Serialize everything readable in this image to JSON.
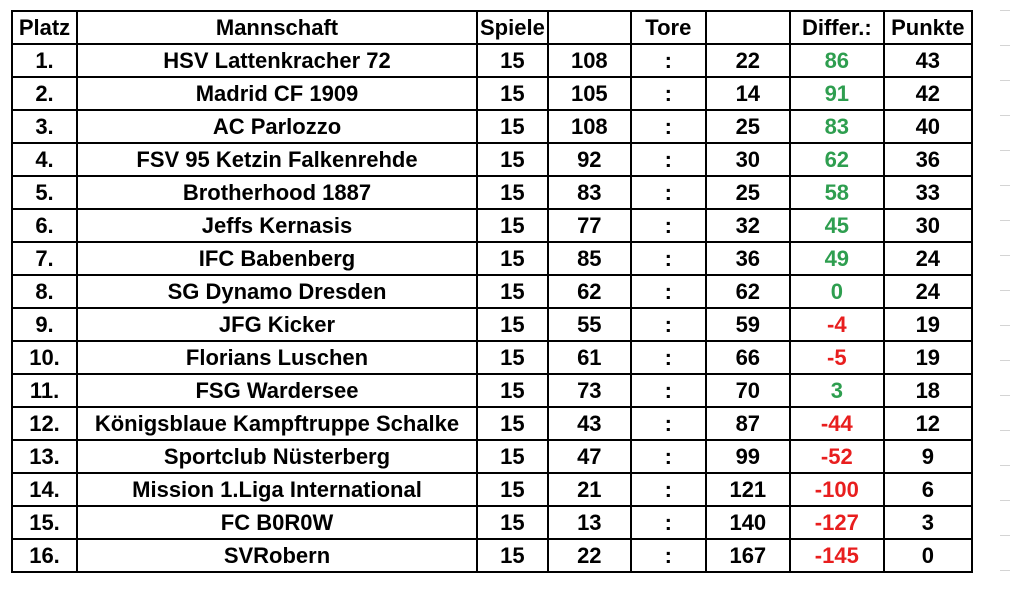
{
  "headers": {
    "platz": "Platz",
    "team": "Mannschaft",
    "spiele": "Spiele",
    "tore": "Tore",
    "diff": "Differ.:",
    "punkte": "Punkte"
  },
  "separator": ":",
  "colors": {
    "positive": "#2e9e4f",
    "negative": "#e81e1e"
  },
  "rows": [
    {
      "platz": "1.",
      "team": "HSV Lattenkracher 72",
      "spiele": "15",
      "tore_for": "108",
      "tore_against": "22",
      "diff": "86",
      "punkte": "43"
    },
    {
      "platz": "2.",
      "team": "Madrid CF 1909",
      "spiele": "15",
      "tore_for": "105",
      "tore_against": "14",
      "diff": "91",
      "punkte": "42"
    },
    {
      "platz": "3.",
      "team": "AC Parlozzo",
      "spiele": "15",
      "tore_for": "108",
      "tore_against": "25",
      "diff": "83",
      "punkte": "40"
    },
    {
      "platz": "4.",
      "team": "FSV 95 Ketzin Falkenrehde",
      "spiele": "15",
      "tore_for": "92",
      "tore_against": "30",
      "diff": "62",
      "punkte": "36"
    },
    {
      "platz": "5.",
      "team": "Brotherhood 1887",
      "spiele": "15",
      "tore_for": "83",
      "tore_against": "25",
      "diff": "58",
      "punkte": "33"
    },
    {
      "platz": "6.",
      "team": "Jeffs Kernasis",
      "spiele": "15",
      "tore_for": "77",
      "tore_against": "32",
      "diff": "45",
      "punkte": "30"
    },
    {
      "platz": "7.",
      "team": "IFC Babenberg",
      "spiele": "15",
      "tore_for": "85",
      "tore_against": "36",
      "diff": "49",
      "punkte": "24"
    },
    {
      "platz": "8.",
      "team": "SG Dynamo Dresden",
      "spiele": "15",
      "tore_for": "62",
      "tore_against": "62",
      "diff": "0",
      "punkte": "24"
    },
    {
      "platz": "9.",
      "team": "JFG Kicker",
      "spiele": "15",
      "tore_for": "55",
      "tore_against": "59",
      "diff": "-4",
      "punkte": "19"
    },
    {
      "platz": "10.",
      "team": "Florians Luschen",
      "spiele": "15",
      "tore_for": "61",
      "tore_against": "66",
      "diff": "-5",
      "punkte": "19"
    },
    {
      "platz": "11.",
      "team": "FSG Wardersee",
      "spiele": "15",
      "tore_for": "73",
      "tore_against": "70",
      "diff": "3",
      "punkte": "18"
    },
    {
      "platz": "12.",
      "team": "Königsblaue Kampftruppe Schalke",
      "spiele": "15",
      "tore_for": "43",
      "tore_against": "87",
      "diff": "-44",
      "punkte": "12"
    },
    {
      "platz": "13.",
      "team": "Sportclub Nüsterberg",
      "spiele": "15",
      "tore_for": "47",
      "tore_against": "99",
      "diff": "-52",
      "punkte": "9"
    },
    {
      "platz": "14.",
      "team": "Mission 1.Liga International",
      "spiele": "15",
      "tore_for": "21",
      "tore_against": "121",
      "diff": "-100",
      "punkte": "6"
    },
    {
      "platz": "15.",
      "team": "FC B0R0W",
      "spiele": "15",
      "tore_for": "13",
      "tore_against": "140",
      "diff": "-127",
      "punkte": "3"
    },
    {
      "platz": "16.",
      "team": "SVRobern",
      "spiele": "15",
      "tore_for": "22",
      "tore_against": "167",
      "diff": "-145",
      "punkte": "0"
    }
  ]
}
